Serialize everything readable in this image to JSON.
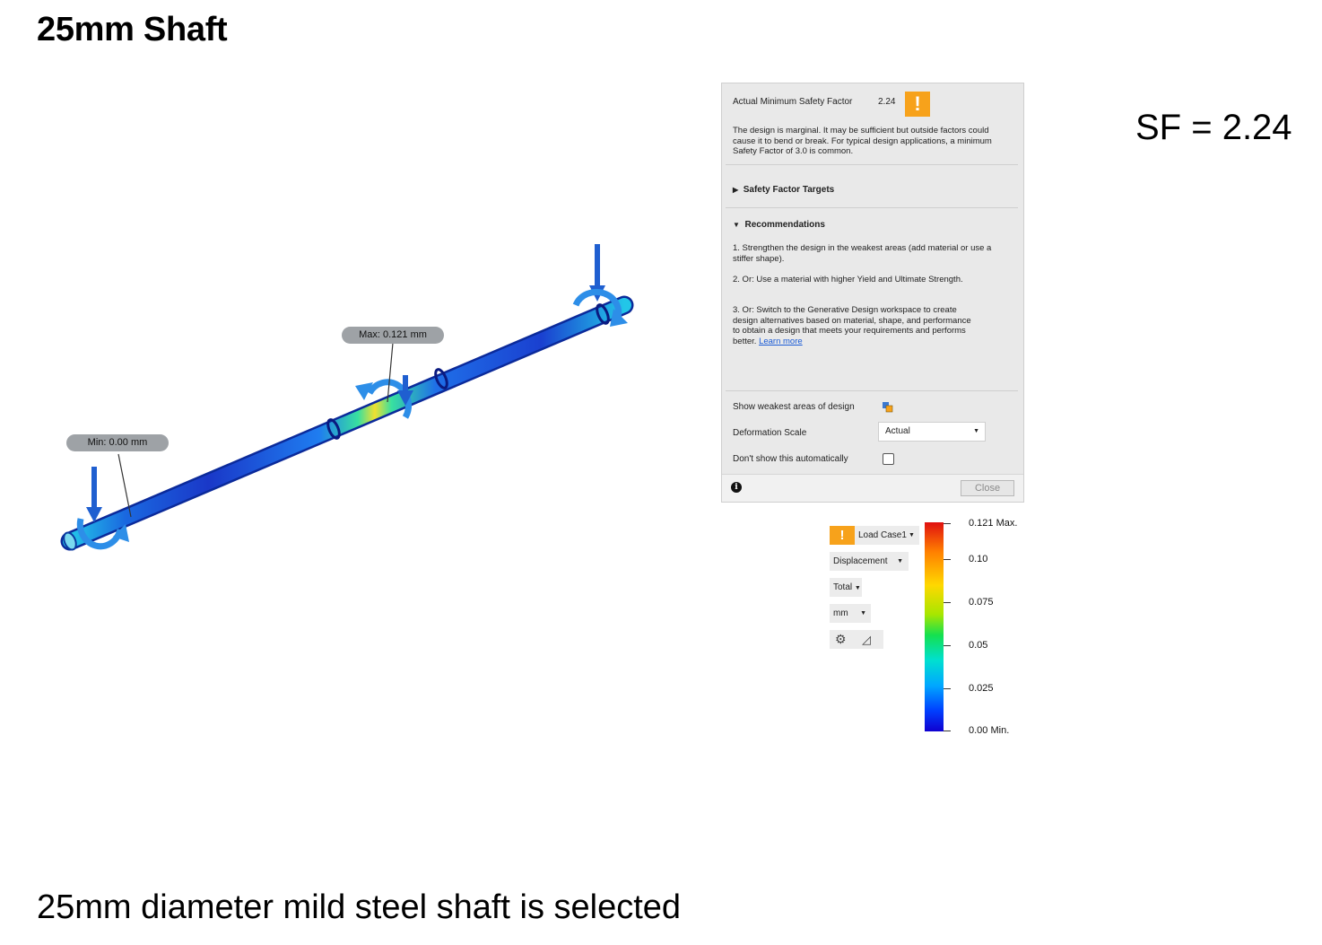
{
  "title": "25mm Shaft",
  "sf_label": "SF = 2.24",
  "caption": "25mm diameter mild steel shaft is selected",
  "viewport": {
    "max_callout": "Max: 0.121 mm",
    "min_callout": "Min: 0.00 mm"
  },
  "dialog": {
    "amsf_label": "Actual Minimum Safety Factor",
    "amsf_value": "2.24",
    "warning_symbol": "!",
    "description": "The design is marginal. It may be sufficient but outside factors could cause it to bend or break. For typical design applications, a minimum Safety Factor of 3.0 is common.",
    "targets_header": "Safety Factor Targets",
    "recommendations_header": "Recommendations",
    "recommendation_1": "1. Strengthen the design in the weakest areas (add material or use a stiffer shape).",
    "recommendation_2": "2. Or: Use a material with higher Yield and Ultimate Strength.",
    "recommendation_3": "3. Or: Switch to the Generative Design workspace to create design alternatives based on material, shape, and performance to obtain a design that meets your requirements and performs better.",
    "learn_more": "Learn more",
    "show_weakest_label": "Show weakest areas of design",
    "deformation_label": "Deformation Scale",
    "deformation_value": "Actual",
    "dont_show_label": "Don't show this automatically",
    "dont_show_checked": false,
    "info_symbol": "i",
    "close_label": "Close"
  },
  "legend": {
    "load_case": "Load Case1",
    "result_type": "Displacement",
    "component": "Total",
    "unit": "mm",
    "icons": [
      "gear-icon",
      "ruler-icon"
    ],
    "colors": [
      "#e01010",
      "#ff7f00",
      "#ffd800",
      "#14e050",
      "#00e0d0",
      "#0040ff",
      "#1000d0"
    ],
    "ticks": [
      "0.121 Max.",
      "0.10",
      "0.075",
      "0.05",
      "0.025",
      "0.00 Min."
    ]
  }
}
